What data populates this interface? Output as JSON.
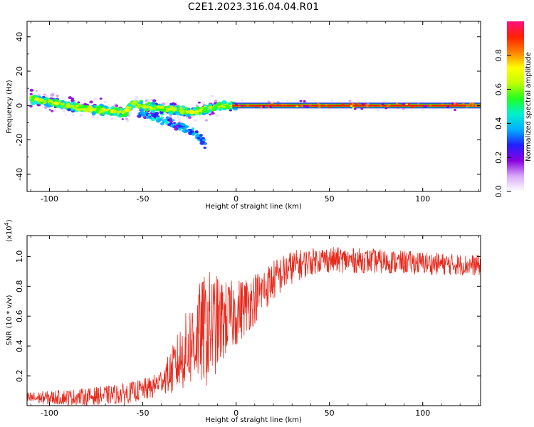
{
  "title": "C2E1.2023.316.04.04.R01",
  "chart_data": [
    {
      "type": "heatmap",
      "name": "spectrogram",
      "xlabel": "Height of straight line (km)",
      "ylabel": "Frequency (Hz)",
      "xlim": [
        -112,
        131
      ],
      "ylim": [
        -50,
        49
      ],
      "x_ticks": [
        -100,
        -50,
        0,
        50,
        100
      ],
      "y_ticks": [
        40,
        20,
        0,
        -20,
        -40
      ],
      "colorbar": {
        "label": "Normalized spectral amplitude",
        "range": [
          0,
          1
        ],
        "ticks": [
          "0.0",
          "0.2",
          "0.4",
          "0.6",
          "0.8"
        ],
        "colors": [
          "#ffffff",
          "#d8a8f8",
          "#8a00e0",
          "#2020ff",
          "#00b0ff",
          "#00f0d0",
          "#20ff20",
          "#c0ff00",
          "#ffff00",
          "#ff8000",
          "#ff2000",
          "#ff1080"
        ]
      },
      "ridge": [
        {
          "x": -110,
          "f": 4
        },
        {
          "x": -100,
          "f": 2
        },
        {
          "x": -90,
          "f": 0
        },
        {
          "x": -80,
          "f": -2
        },
        {
          "x": -70,
          "f": -3
        },
        {
          "x": -60,
          "f": -4
        },
        {
          "x": -55,
          "f": 1
        },
        {
          "x": -45,
          "f": -1
        },
        {
          "x": -35,
          "f": -2
        },
        {
          "x": -25,
          "f": -4
        },
        {
          "x": -15,
          "f": -2
        },
        {
          "x": -8,
          "f": 0
        },
        {
          "x": 0,
          "f": 0
        },
        {
          "x": 131,
          "f": 0
        }
      ],
      "secondary_trend": [
        {
          "x": -50,
          "f": -5
        },
        {
          "x": -40,
          "f": -8
        },
        {
          "x": -30,
          "f": -12
        },
        {
          "x": -22,
          "f": -16
        },
        {
          "x": -17,
          "f": -22
        }
      ]
    },
    {
      "type": "line",
      "name": "snr",
      "xlabel": "Height of straight line (km)",
      "ylabel": "SNR (10 * v/v)",
      "multiplier": "(x10",
      "multiplier_exp": "4",
      "xlim": [
        -112,
        131
      ],
      "ylim": [
        0,
        1.14
      ],
      "x_ticks": [
        -100,
        -50,
        0,
        50,
        100
      ],
      "y_ticks": [
        "0.2",
        "0.4",
        "0.6",
        "0.8",
        "1.0"
      ],
      "color": "#e8291c",
      "trend": [
        {
          "x": -112,
          "y": 0.05
        },
        {
          "x": -80,
          "y": 0.06
        },
        {
          "x": -60,
          "y": 0.08
        },
        {
          "x": -45,
          "y": 0.12
        },
        {
          "x": -35,
          "y": 0.22
        },
        {
          "x": -28,
          "y": 0.35
        },
        {
          "x": -20,
          "y": 0.48
        },
        {
          "x": -10,
          "y": 0.55
        },
        {
          "x": 0,
          "y": 0.62
        },
        {
          "x": 10,
          "y": 0.72
        },
        {
          "x": 20,
          "y": 0.84
        },
        {
          "x": 30,
          "y": 0.93
        },
        {
          "x": 45,
          "y": 0.98
        },
        {
          "x": 70,
          "y": 0.97
        },
        {
          "x": 131,
          "y": 0.94
        }
      ],
      "noise_profile": [
        {
          "x": -112,
          "a": 0.04
        },
        {
          "x": -40,
          "a": 0.08
        },
        {
          "x": -30,
          "a": 0.22
        },
        {
          "x": -15,
          "a": 0.4
        },
        {
          "x": -5,
          "a": 0.25
        },
        {
          "x": 15,
          "a": 0.15
        },
        {
          "x": 40,
          "a": 0.09
        },
        {
          "x": 131,
          "a": 0.07
        }
      ]
    }
  ]
}
